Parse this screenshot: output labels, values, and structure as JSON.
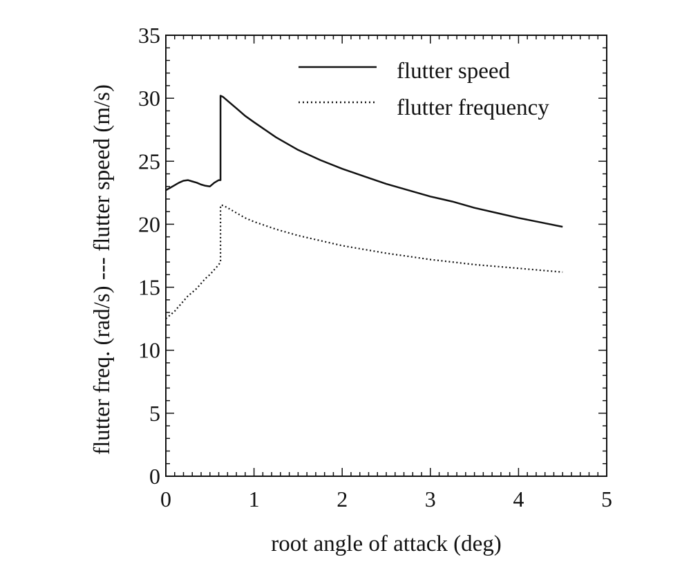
{
  "chart_data": {
    "type": "line",
    "title": "",
    "xlabel": "root angle of attack (deg)",
    "ylabel": "flutter freq. (rad/s) --- flutter speed (m/s)",
    "xlim": [
      0,
      5
    ],
    "ylim": [
      0,
      35
    ],
    "x_ticks": [
      0,
      1,
      2,
      3,
      4,
      5
    ],
    "y_ticks": [
      0,
      5,
      10,
      15,
      20,
      25,
      30,
      35
    ],
    "grid": false,
    "legend_position": "top-right",
    "series": [
      {
        "name": "flutter speed",
        "style": "solid",
        "x": [
          0,
          0.05,
          0.1,
          0.15,
          0.2,
          0.25,
          0.3,
          0.35,
          0.4,
          0.45,
          0.5,
          0.55,
          0.6,
          0.62,
          0.62,
          0.65,
          0.7,
          0.8,
          0.9,
          1.0,
          1.25,
          1.5,
          1.75,
          2.0,
          2.25,
          2.5,
          2.75,
          3.0,
          3.25,
          3.5,
          3.75,
          4.0,
          4.25,
          4.5
        ],
        "y": [
          22.7,
          22.9,
          23.1,
          23.3,
          23.45,
          23.5,
          23.4,
          23.3,
          23.15,
          23.05,
          23.0,
          23.3,
          23.5,
          23.5,
          30.2,
          30.1,
          29.8,
          29.2,
          28.6,
          28.1,
          26.9,
          25.9,
          25.1,
          24.4,
          23.8,
          23.2,
          22.7,
          22.2,
          21.8,
          21.3,
          20.9,
          20.5,
          20.15,
          19.8
        ]
      },
      {
        "name": "flutter frequency",
        "style": "dotted",
        "x": [
          0,
          0.05,
          0.1,
          0.15,
          0.2,
          0.25,
          0.3,
          0.35,
          0.4,
          0.45,
          0.5,
          0.55,
          0.6,
          0.62,
          0.62,
          0.65,
          0.7,
          0.8,
          0.9,
          1.0,
          1.25,
          1.5,
          1.75,
          2.0,
          2.25,
          2.5,
          2.75,
          3.0,
          3.25,
          3.5,
          3.75,
          4.0,
          4.25,
          4.5
        ],
        "y": [
          12.5,
          12.8,
          13.1,
          13.5,
          13.9,
          14.3,
          14.6,
          14.9,
          15.3,
          15.7,
          16.0,
          16.4,
          16.8,
          17.0,
          21.5,
          21.5,
          21.3,
          20.9,
          20.5,
          20.2,
          19.6,
          19.1,
          18.7,
          18.3,
          18.0,
          17.7,
          17.45,
          17.2,
          17.0,
          16.8,
          16.65,
          16.5,
          16.35,
          16.2
        ]
      }
    ]
  }
}
